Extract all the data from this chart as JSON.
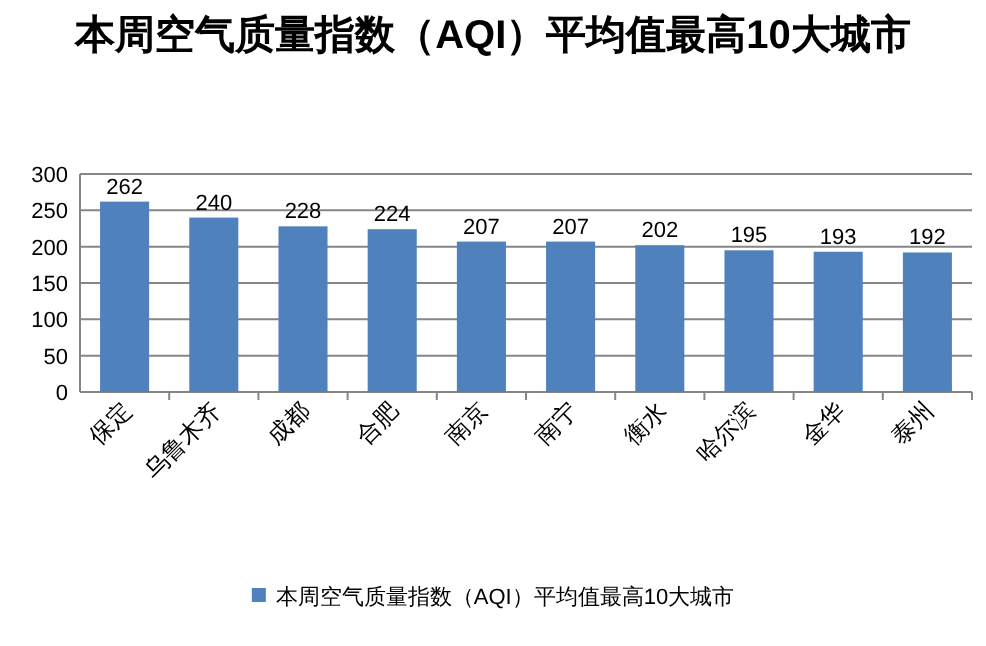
{
  "chart_data": {
    "type": "bar",
    "title": "本周空气质量指数（AQI）平均值最高10大城市",
    "categories": [
      "保定",
      "乌鲁木齐",
      "成都",
      "合肥",
      "南京",
      "南宁",
      "衡水",
      "哈尔滨",
      "金华",
      "泰州"
    ],
    "series": [
      {
        "name": "本周空气质量指数（AQI）平均值最高10大城市",
        "color": "#4f81bd",
        "values": [
          262,
          240,
          228,
          224,
          207,
          207,
          202,
          195,
          193,
          192
        ]
      }
    ],
    "ylim": [
      0,
      300
    ],
    "yticks": [
      0,
      50,
      100,
      150,
      200,
      250,
      300
    ],
    "grid": "y",
    "data_labels": true,
    "legend": "bottom"
  }
}
